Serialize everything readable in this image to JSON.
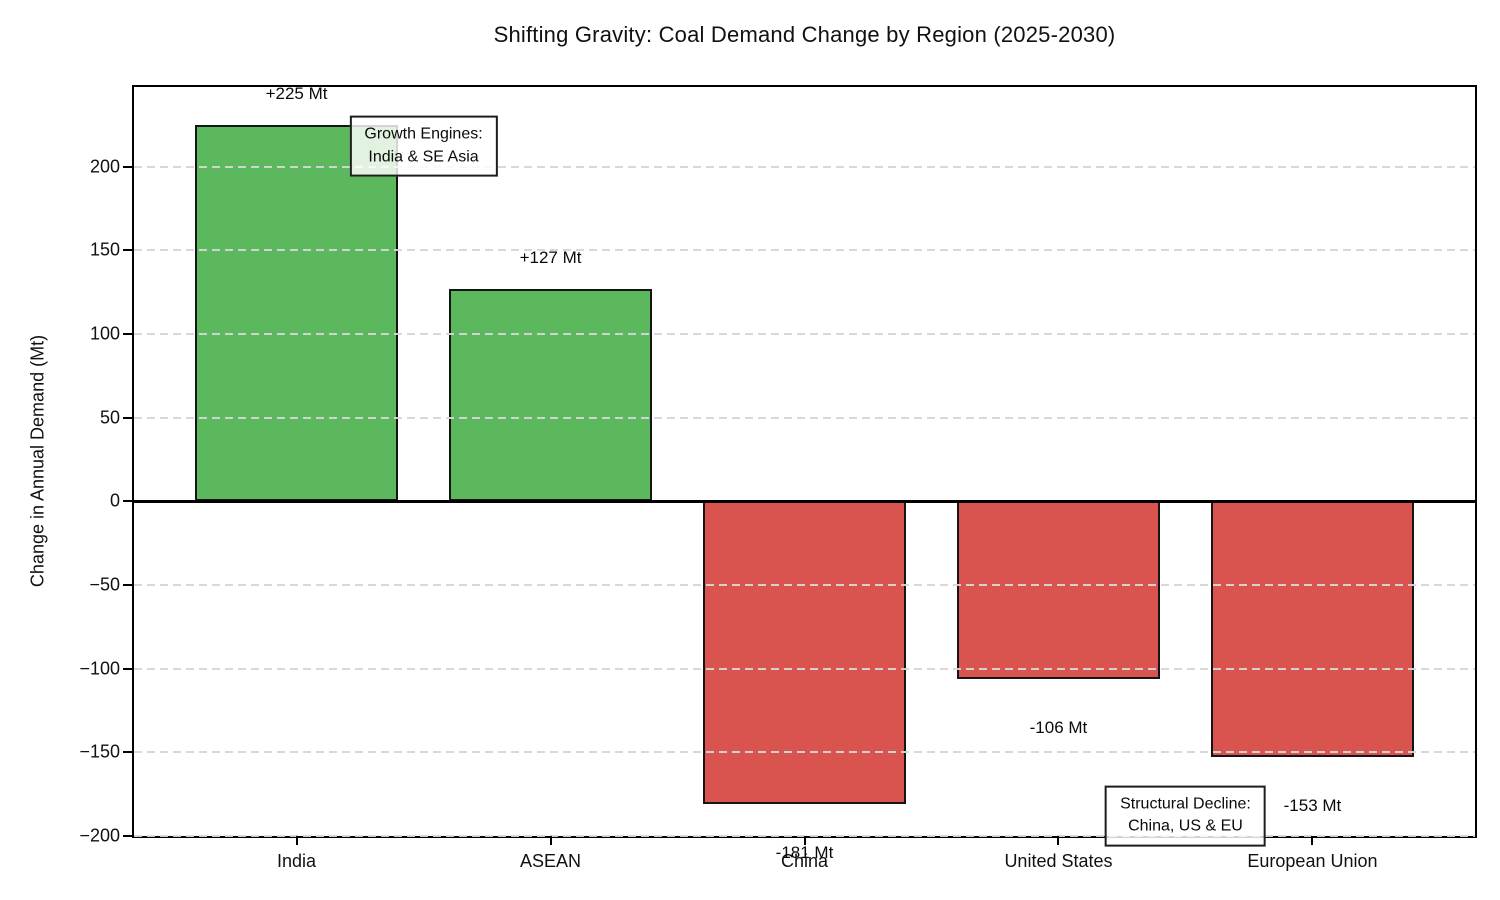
{
  "chart_data": {
    "type": "bar",
    "title": "Shifting Gravity: Coal Demand Change by Region (2025-2030)",
    "xlabel": "",
    "ylabel": "Change in Annual Demand (Mt)",
    "categories": [
      "India",
      "ASEAN",
      "China",
      "United States",
      "European Union"
    ],
    "values": [
      225,
      127,
      -181,
      -106,
      -153
    ],
    "bar_labels": [
      "+225 Mt",
      "+127 Mt",
      "-181 Mt",
      "-106 Mt",
      "-153 Mt"
    ],
    "yticks": [
      -200,
      -150,
      -100,
      -50,
      0,
      50,
      100,
      150,
      200
    ],
    "ytick_labels": [
      "−200",
      "−150",
      "−100",
      "−50",
      "0",
      "50",
      "100",
      "150",
      "200"
    ],
    "ylim": [
      -200,
      247.5
    ],
    "xlim": [
      -0.64,
      4.64
    ],
    "bar_width": 0.8,
    "grid": "horizontal dashed, drawn above bars",
    "legend": "none",
    "zero_line": true,
    "colors": {
      "positive_bar": "#5cb85c",
      "negative_bar": "#d9534f",
      "bar_edge": "#151515",
      "gridline": "#d6d6d6",
      "text": "#111111",
      "annotation_fill": "rgba(255,255,255,0.82)",
      "annotation_border": "#1d1d1d"
    },
    "annotations": [
      {
        "id": "growth",
        "line1": "Growth Engines:",
        "line2": "India & SE Asia",
        "x": 0.5,
        "y": 212
      },
      {
        "id": "decline",
        "line1": "Structural Decline:",
        "line2": "China, US & EU",
        "x": 3.5,
        "y": -188
      }
    ]
  }
}
